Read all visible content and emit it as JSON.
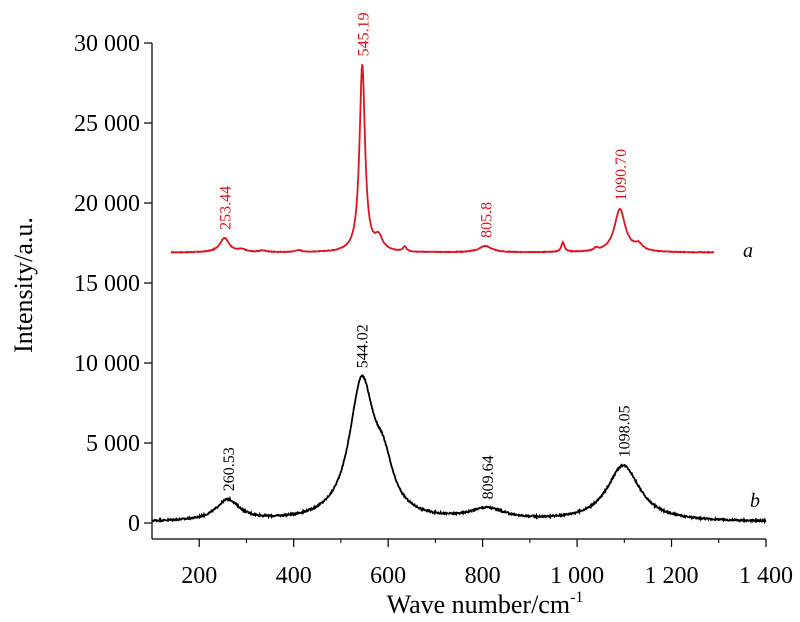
{
  "chart_data": {
    "type": "line",
    "xlabel": "Wave number/cm",
    "xlabel_sup": "-1",
    "ylabel": "Intensity/a.u.",
    "xlim": [
      100,
      1400
    ],
    "ylim": [
      -1000,
      30000
    ],
    "xticks": [
      200,
      400,
      600,
      800,
      1000,
      1200,
      1400
    ],
    "xtick_labels": [
      "200",
      "400",
      "600",
      "800",
      "1 000",
      "1 200",
      "1 400"
    ],
    "yticks": [
      0,
      5000,
      10000,
      15000,
      20000,
      25000,
      30000
    ],
    "ytick_labels": [
      "0",
      "5 000",
      "10 000",
      "15 000",
      "20 000",
      "25 000",
      "30 000"
    ],
    "grid": false,
    "series": [
      {
        "name": "a",
        "color": "#e0141e",
        "x_range": [
          140,
          1290
        ],
        "baseline": 16900,
        "peaks": [
          {
            "center": 253.44,
            "height": 900,
            "width": 12,
            "label": "253.44"
          },
          {
            "center": 290,
            "height": 150,
            "width": 10
          },
          {
            "center": 335,
            "height": 100,
            "width": 10
          },
          {
            "center": 410,
            "height": 120,
            "width": 8
          },
          {
            "center": 545.19,
            "height": 11700,
            "width": 7,
            "label": "545.19"
          },
          {
            "center": 580,
            "height": 800,
            "width": 10
          },
          {
            "center": 635,
            "height": 300,
            "width": 4
          },
          {
            "center": 805.8,
            "height": 400,
            "width": 16,
            "label": "805.8"
          },
          {
            "center": 970,
            "height": 600,
            "width": 4
          },
          {
            "center": 1040,
            "height": 150,
            "width": 5
          },
          {
            "center": 1090.7,
            "height": 2700,
            "width": 14,
            "label": "1090.70"
          },
          {
            "center": 1130,
            "height": 400,
            "width": 10
          }
        ]
      },
      {
        "name": "b",
        "color": "#000000",
        "x_range": [
          100,
          1400
        ],
        "baseline": 50,
        "peaks": [
          {
            "center": 260.53,
            "height": 1300,
            "width": 30,
            "label": "260.53"
          },
          {
            "center": 544.02,
            "height": 8500,
            "width": 32,
            "label": "544.02"
          },
          {
            "center": 590,
            "height": 2500,
            "width": 25
          },
          {
            "center": 809.64,
            "height": 700,
            "width": 45,
            "label": "809.64"
          },
          {
            "center": 1098.05,
            "height": 3500,
            "width": 42,
            "label": "1098.05"
          }
        ]
      }
    ]
  }
}
